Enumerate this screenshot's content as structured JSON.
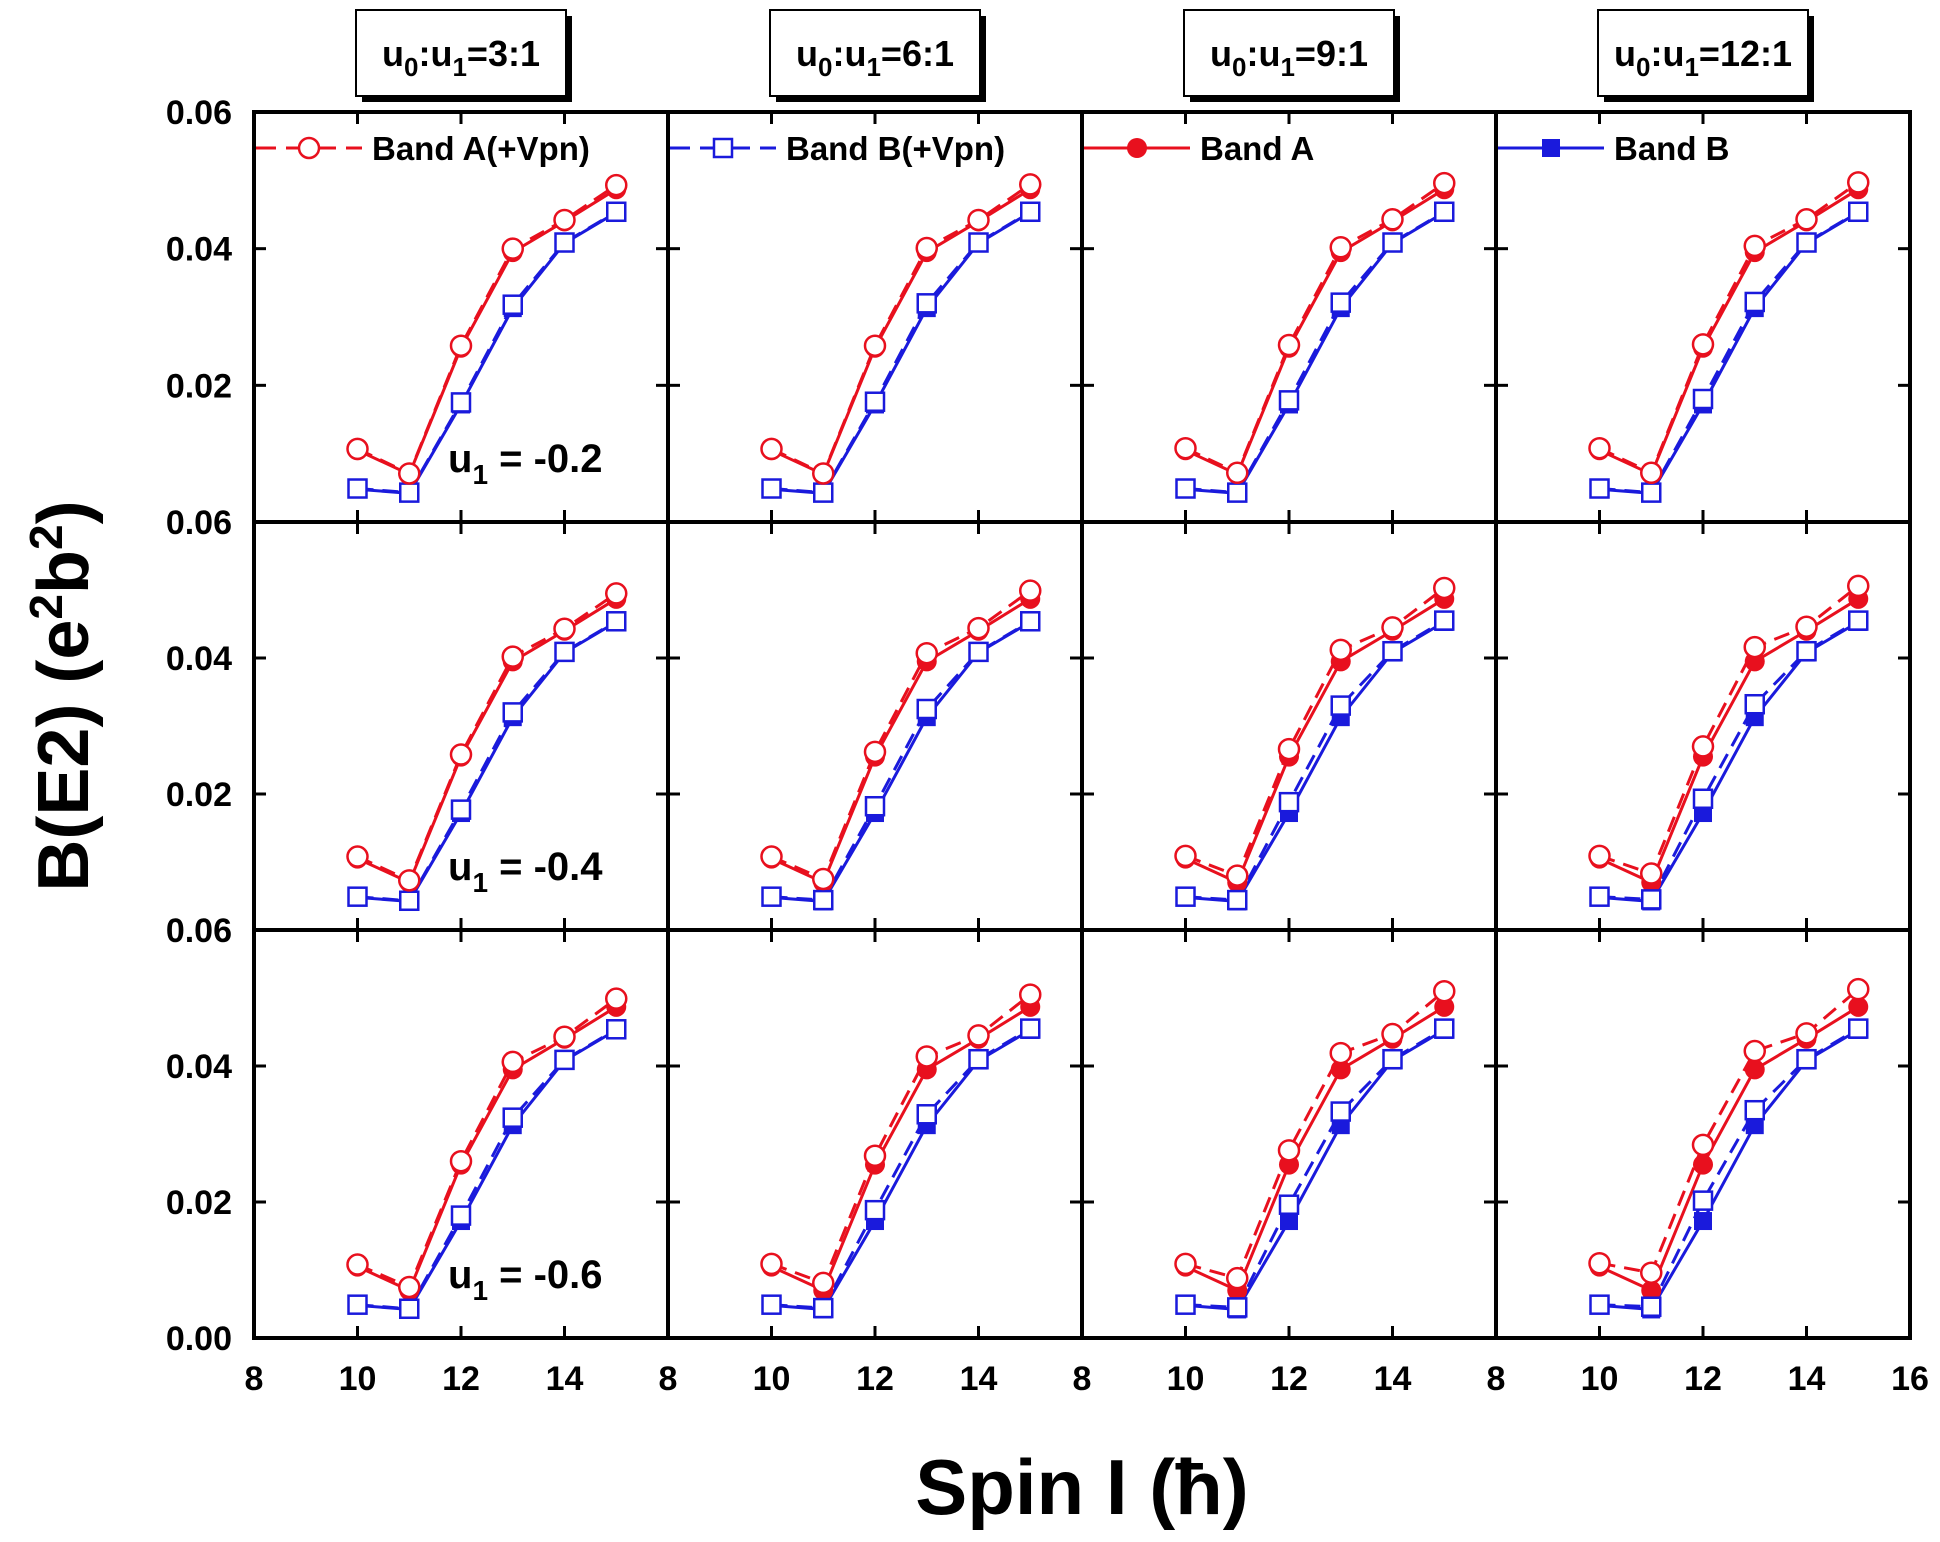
{
  "chart_data": {
    "type": "line",
    "xlabel": "Spin I (ħ)",
    "ylabel": "B(E2) (e2b2)",
    "ylabel_parts": [
      "B(E2) (e",
      "2",
      "b",
      "2",
      ")"
    ],
    "xlim": [
      8,
      16
    ],
    "ylim": [
      0,
      0.06
    ],
    "x_ticks": [
      "8",
      "10",
      "12",
      "14",
      "16"
    ],
    "panel_y_ticks": [
      "0.06",
      "0.04",
      "0.02",
      "0.00"
    ],
    "columns": [
      {
        "label": "u0:u1=3:1",
        "parts": [
          "u",
          "0",
          ":u",
          "1",
          "=3:1"
        ]
      },
      {
        "label": "u0:u1=6:1",
        "parts": [
          "u",
          "0",
          ":u",
          "1",
          "=6:1"
        ]
      },
      {
        "label": "u0:u1=9:1",
        "parts": [
          "u",
          "0",
          ":u",
          "1",
          "=9:1"
        ]
      },
      {
        "label": "u0:u1=12:1",
        "parts": [
          "u",
          "0",
          ":u",
          "1",
          "=12:1"
        ]
      }
    ],
    "rows": [
      {
        "label": "u1 = -0.2",
        "parts": [
          "u",
          "1",
          " = -0.2"
        ]
      },
      {
        "label": "u1 = -0.4",
        "parts": [
          "u",
          "1",
          " = -0.4"
        ]
      },
      {
        "label": "u1 = -0.6",
        "parts": [
          "u",
          "1",
          " = -0.6"
        ]
      }
    ],
    "legend": [
      {
        "name": "Band A(+Vpn)",
        "color": "#e8101e",
        "marker": "open-circle",
        "dash": true
      },
      {
        "name": "Band B(+Vpn)",
        "color": "#1a1adc",
        "marker": "open-square",
        "dash": true
      },
      {
        "name": "Band A",
        "color": "#e8101e",
        "marker": "filled-circle",
        "dash": false
      },
      {
        "name": "Band B",
        "color": "#1a1adc",
        "marker": "filled-square",
        "dash": false
      }
    ],
    "x": [
      10,
      11,
      12,
      13,
      14,
      15
    ],
    "series_base": {
      "Band A": [
        0.0105,
        0.007,
        0.0255,
        0.0395,
        0.044,
        0.0487
      ],
      "Band B": [
        0.0048,
        0.0042,
        0.0172,
        0.0313,
        0.0408,
        0.0453
      ]
    },
    "series_vpn": [
      [
        {
          "Band A(+Vpn)": [
            0.0107,
            0.0071,
            0.0258,
            0.04,
            0.0442,
            0.0493
          ],
          "Band B(+Vpn)": [
            0.0049,
            0.0043,
            0.0175,
            0.0318,
            0.0409,
            0.0454
          ]
        },
        {
          "Band A(+Vpn)": [
            0.0107,
            0.0071,
            0.0258,
            0.0401,
            0.0442,
            0.0494
          ],
          "Band B(+Vpn)": [
            0.0049,
            0.0043,
            0.0176,
            0.032,
            0.0409,
            0.0454
          ]
        },
        {
          "Band A(+Vpn)": [
            0.0108,
            0.0072,
            0.0259,
            0.0402,
            0.0443,
            0.0496
          ],
          "Band B(+Vpn)": [
            0.0049,
            0.0043,
            0.0178,
            0.0321,
            0.0409,
            0.0454
          ]
        },
        {
          "Band A(+Vpn)": [
            0.0108,
            0.0072,
            0.026,
            0.0404,
            0.0443,
            0.0497
          ],
          "Band B(+Vpn)": [
            0.0049,
            0.0043,
            0.018,
            0.0322,
            0.0409,
            0.0454
          ]
        }
      ],
      [
        {
          "Band A(+Vpn)": [
            0.0108,
            0.0073,
            0.0258,
            0.0402,
            0.0443,
            0.0495
          ],
          "Band B(+Vpn)": [
            0.0049,
            0.0043,
            0.0177,
            0.032,
            0.0409,
            0.0454
          ]
        },
        {
          "Band A(+Vpn)": [
            0.0108,
            0.0075,
            0.0262,
            0.0407,
            0.0444,
            0.0499
          ],
          "Band B(+Vpn)": [
            0.0049,
            0.0044,
            0.0182,
            0.0325,
            0.0409,
            0.0454
          ]
        },
        {
          "Band A(+Vpn)": [
            0.0109,
            0.008,
            0.0266,
            0.0412,
            0.0445,
            0.0503
          ],
          "Band B(+Vpn)": [
            0.0049,
            0.0044,
            0.0188,
            0.033,
            0.041,
            0.0455
          ]
        },
        {
          "Band A(+Vpn)": [
            0.0109,
            0.0083,
            0.027,
            0.0416,
            0.0446,
            0.0506
          ],
          "Band B(+Vpn)": [
            0.0049,
            0.0045,
            0.0193,
            0.0332,
            0.041,
            0.0455
          ]
        }
      ],
      [
        {
          "Band A(+Vpn)": [
            0.0108,
            0.0075,
            0.026,
            0.0406,
            0.0443,
            0.0499
          ],
          "Band B(+Vpn)": [
            0.0049,
            0.0043,
            0.018,
            0.0324,
            0.0409,
            0.0454
          ]
        },
        {
          "Band A(+Vpn)": [
            0.0109,
            0.0081,
            0.0268,
            0.0414,
            0.0445,
            0.0505
          ],
          "Band B(+Vpn)": [
            0.0049,
            0.0044,
            0.0188,
            0.0329,
            0.041,
            0.0455
          ]
        },
        {
          "Band A(+Vpn)": [
            0.0109,
            0.0088,
            0.0276,
            0.0419,
            0.0447,
            0.051
          ],
          "Band B(+Vpn)": [
            0.0049,
            0.0045,
            0.0196,
            0.0333,
            0.041,
            0.0455
          ]
        },
        {
          "Band A(+Vpn)": [
            0.011,
            0.0096,
            0.0284,
            0.0422,
            0.0448,
            0.0513
          ],
          "Band B(+Vpn)": [
            0.0049,
            0.0046,
            0.0202,
            0.0335,
            0.041,
            0.0455
          ]
        }
      ]
    ],
    "colors": {
      "band_a": "#e8101e",
      "band_b": "#1a1adc"
    }
  }
}
